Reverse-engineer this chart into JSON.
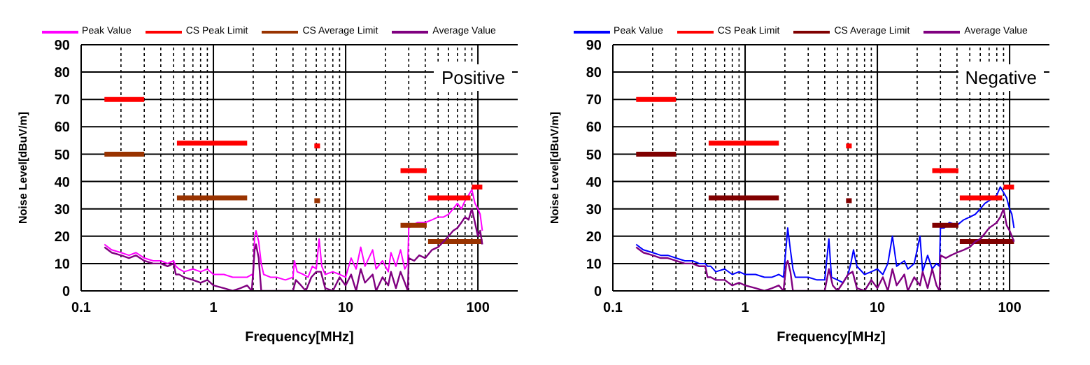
{
  "chart_data": [
    {
      "type": "line",
      "xlabel": "Frequency[MHz]",
      "ylabel": "Noise Level[dBuV/m]",
      "annotations": [
        "Positive"
      ],
      "log": "x",
      "grid": true,
      "legend": "top",
      "xlim": [
        0.1,
        200
      ],
      "ylim": [
        0,
        90
      ],
      "xticks": [
        {
          "value": 0.1,
          "label": "0.1"
        },
        {
          "value": 0.2,
          "label": null
        },
        {
          "value": 0.3,
          "label": null
        },
        {
          "value": 0.4,
          "label": null
        },
        {
          "value": 0.5,
          "label": null
        },
        {
          "value": 0.6,
          "label": null
        },
        {
          "value": 0.7,
          "label": null
        },
        {
          "value": 0.8,
          "label": null
        },
        {
          "value": 0.9,
          "label": null
        },
        1,
        {
          "value": 2,
          "label": null
        },
        {
          "value": 3,
          "label": null
        },
        {
          "value": 4,
          "label": null
        },
        {
          "value": 5,
          "label": null
        },
        {
          "value": 6,
          "label": null
        },
        {
          "value": 7,
          "label": null
        },
        {
          "value": 8,
          "label": null
        },
        {
          "value": 9,
          "label": null
        },
        10,
        {
          "value": 20,
          "label": null
        },
        {
          "value": 30,
          "label": null
        },
        {
          "value": 40,
          "label": null
        },
        {
          "value": 50,
          "label": null
        },
        {
          "value": 60,
          "label": null
        },
        {
          "value": 70,
          "label": null
        },
        {
          "value": 80,
          "label": null
        },
        {
          "value": 90,
          "label": null
        },
        100
      ],
      "yticks": [
        0,
        10,
        20,
        30,
        40,
        50,
        60,
        70,
        80,
        90
      ],
      "series": [
        {
          "name": "Peak Value",
          "color": "#ff00ff",
          "x": [
            0.15,
            0.17,
            0.2,
            0.23,
            0.26,
            0.3,
            0.35,
            0.4,
            0.45,
            0.5,
            0.52,
            0.55,
            0.6,
            0.7,
            0.8,
            0.9,
            1.0,
            1.2,
            1.4,
            1.6,
            1.8,
            1.95,
            2.0,
            2.05,
            2.1,
            2.2,
            2.3,
            2.4,
            2.7,
            3.0,
            3.5,
            4.0,
            4.1,
            4.3,
            4.8,
            5.2,
            5.6,
            6.0,
            6.3,
            6.6,
            7.0,
            8.0,
            9.0,
            10,
            11,
            12,
            13,
            14,
            16,
            17,
            19,
            21,
            22,
            24,
            26,
            28,
            29.5,
            30,
            32,
            35,
            40,
            45,
            50,
            55,
            60,
            65,
            70,
            75,
            80,
            85,
            90,
            95,
            100,
            104,
            108
          ],
          "values": [
            17,
            15,
            14,
            13,
            14,
            12,
            11,
            11,
            10,
            11,
            9,
            8,
            7,
            8,
            7,
            8,
            6,
            6,
            5,
            5,
            5,
            6,
            5,
            20,
            22,
            18,
            10,
            6,
            5,
            5,
            4,
            5,
            11,
            7,
            6,
            5,
            9,
            8,
            19,
            9,
            6,
            7,
            6,
            5,
            12,
            8,
            16,
            9,
            15,
            8,
            11,
            7,
            14,
            9,
            15,
            8,
            10,
            23,
            24,
            25,
            25,
            26,
            27,
            27,
            28,
            30,
            32,
            30,
            33,
            35,
            37,
            32,
            30,
            28,
            22
          ]
        },
        {
          "name": "CS Peak Limit",
          "color": "#ff0000",
          "x": [
            0.15,
            0.3,
            0.4,
            0.53,
            1.8,
            3,
            5.8,
            6.4,
            10,
            26,
            41,
            41.5,
            42,
            88,
            89,
            90,
            108
          ],
          "values": [
            70,
            70,
            null,
            54,
            54,
            null,
            53,
            53,
            null,
            44,
            44,
            null,
            34,
            34,
            null,
            38,
            38
          ]
        },
        {
          "name": "CS Average Limit",
          "color": "#993300",
          "x": [
            0.15,
            0.3,
            0.4,
            0.53,
            1.8,
            3,
            5.8,
            6.4,
            10,
            26,
            41,
            41.5,
            42,
            108
          ],
          "values": [
            50,
            50,
            null,
            34,
            34,
            null,
            33,
            33,
            null,
            24,
            24,
            null,
            18,
            18
          ]
        },
        {
          "name": "Average Value",
          "color": "#800080",
          "x": [
            0.15,
            0.17,
            0.2,
            0.23,
            0.26,
            0.3,
            0.35,
            0.4,
            0.45,
            0.5,
            0.52,
            0.55,
            0.6,
            0.7,
            0.8,
            0.9,
            1.0,
            1.2,
            1.4,
            1.6,
            1.8,
            1.95,
            2.05,
            2.1,
            2.2,
            2.3,
            4.0,
            4.2,
            4.6,
            5.0,
            5.5,
            6.0,
            6.5,
            7.0,
            8,
            9,
            10,
            11,
            12,
            13,
            14,
            16,
            17,
            19,
            21,
            22,
            24,
            26,
            28,
            29.5,
            30,
            33,
            36,
            40,
            45,
            50,
            55,
            60,
            65,
            70,
            75,
            80,
            85,
            90,
            95,
            100,
            104,
            108
          ],
          "values": [
            16,
            14,
            13,
            12,
            13,
            11,
            10,
            10,
            9,
            10,
            6,
            6,
            5,
            4,
            3,
            4,
            2,
            1,
            0,
            1,
            2,
            0,
            15,
            17,
            12,
            0,
            0,
            4,
            2,
            0,
            5,
            7,
            7,
            1,
            0,
            5,
            2,
            6,
            0,
            8,
            3,
            6,
            0,
            5,
            2,
            7,
            1,
            7,
            3,
            0,
            12,
            11,
            13,
            12,
            15,
            16,
            18,
            20,
            22,
            23,
            25,
            27,
            26,
            30,
            25,
            20,
            22,
            17
          ]
        }
      ]
    },
    {
      "type": "line",
      "xlabel": "Frequency[MHz]",
      "ylabel": "Noise Level[dBuV/m]",
      "annotations": [
        "Negative"
      ],
      "log": "x",
      "grid": true,
      "legend": "top",
      "xlim": [
        0.1,
        200
      ],
      "ylim": [
        0,
        90
      ],
      "xticks": [
        {
          "value": 0.1,
          "label": "0.1"
        },
        {
          "value": 0.2,
          "label": null
        },
        {
          "value": 0.3,
          "label": null
        },
        {
          "value": 0.4,
          "label": null
        },
        {
          "value": 0.5,
          "label": null
        },
        {
          "value": 0.6,
          "label": null
        },
        {
          "value": 0.7,
          "label": null
        },
        {
          "value": 0.8,
          "label": null
        },
        {
          "value": 0.9,
          "label": null
        },
        1,
        {
          "value": 2,
          "label": null
        },
        {
          "value": 3,
          "label": null
        },
        {
          "value": 4,
          "label": null
        },
        {
          "value": 5,
          "label": null
        },
        {
          "value": 6,
          "label": null
        },
        {
          "value": 7,
          "label": null
        },
        {
          "value": 8,
          "label": null
        },
        {
          "value": 9,
          "label": null
        },
        10,
        {
          "value": 20,
          "label": null
        },
        {
          "value": 30,
          "label": null
        },
        {
          "value": 40,
          "label": null
        },
        {
          "value": 50,
          "label": null
        },
        {
          "value": 60,
          "label": null
        },
        {
          "value": 70,
          "label": null
        },
        {
          "value": 80,
          "label": null
        },
        {
          "value": 90,
          "label": null
        },
        100
      ],
      "yticks": [
        0,
        10,
        20,
        30,
        40,
        50,
        60,
        70,
        80,
        90
      ],
      "series": [
        {
          "name": "Peak Value",
          "color": "#0000ff",
          "x": [
            0.15,
            0.17,
            0.2,
            0.23,
            0.26,
            0.3,
            0.35,
            0.4,
            0.45,
            0.5,
            0.52,
            0.55,
            0.6,
            0.7,
            0.8,
            0.9,
            1.0,
            1.2,
            1.4,
            1.6,
            1.8,
            1.95,
            2.05,
            2.1,
            2.2,
            2.3,
            2.4,
            2.7,
            3.0,
            3.5,
            4.0,
            4.3,
            4.5,
            5.0,
            5.5,
            6.0,
            6.3,
            6.6,
            7.0,
            8.0,
            9.0,
            10,
            11,
            12,
            13,
            14,
            16,
            17,
            19,
            21,
            22,
            24,
            26,
            28,
            29.5,
            30,
            32,
            35,
            40,
            45,
            50,
            55,
            60,
            65,
            70,
            75,
            80,
            85,
            90,
            95,
            100,
            104,
            108
          ],
          "values": [
            17,
            15,
            14,
            13,
            13,
            12,
            11,
            11,
            10,
            10,
            9,
            9,
            7,
            8,
            6,
            7,
            6,
            6,
            5,
            5,
            6,
            5,
            17,
            23,
            15,
            8,
            5,
            5,
            5,
            4,
            4,
            19,
            5,
            4,
            3,
            6,
            10,
            15,
            9,
            6,
            7,
            8,
            6,
            10,
            20,
            9,
            11,
            8,
            10,
            20,
            7,
            13,
            8,
            10,
            9,
            23,
            23,
            25,
            24,
            26,
            27,
            28,
            30,
            32,
            33,
            34,
            35,
            38,
            36,
            34,
            30,
            28,
            23
          ]
        },
        {
          "name": "CS Peak Limit",
          "color": "#ff0000",
          "x": [
            0.15,
            0.3,
            0.4,
            0.53,
            1.8,
            3,
            5.8,
            6.4,
            10,
            26,
            41,
            41.5,
            42,
            88,
            89,
            90,
            108
          ],
          "values": [
            70,
            70,
            null,
            54,
            54,
            null,
            53,
            53,
            null,
            44,
            44,
            null,
            34,
            34,
            null,
            38,
            38
          ]
        },
        {
          "name": "CS Average Limit",
          "color": "#800000",
          "x": [
            0.15,
            0.3,
            0.4,
            0.53,
            1.8,
            3,
            5.8,
            6.4,
            10,
            26,
            41,
            41.5,
            42,
            108
          ],
          "values": [
            50,
            50,
            null,
            34,
            34,
            null,
            33,
            33,
            null,
            24,
            24,
            null,
            18,
            18
          ]
        },
        {
          "name": "Average Value",
          "color": "#800080",
          "x": [
            0.15,
            0.17,
            0.2,
            0.23,
            0.26,
            0.3,
            0.35,
            0.4,
            0.45,
            0.5,
            0.52,
            0.55,
            0.6,
            0.7,
            0.8,
            0.9,
            1.0,
            1.2,
            1.4,
            1.6,
            1.8,
            1.95,
            2.05,
            2.1,
            2.2,
            2.3,
            4.0,
            4.3,
            4.6,
            5.0,
            5.5,
            6.0,
            6.5,
            7.0,
            8,
            9,
            10,
            11,
            12,
            13,
            14,
            16,
            17,
            19,
            21,
            22,
            24,
            26,
            28,
            29.5,
            30,
            33,
            36,
            40,
            45,
            50,
            55,
            60,
            65,
            70,
            75,
            80,
            85,
            90,
            95,
            100,
            104,
            108
          ],
          "values": [
            16,
            14,
            13,
            12,
            12,
            11,
            10,
            10,
            9,
            9,
            5,
            5,
            4,
            4,
            2,
            3,
            2,
            1,
            0,
            1,
            2,
            0,
            10,
            11,
            7,
            0,
            0,
            8,
            2,
            0,
            3,
            6,
            7,
            1,
            0,
            4,
            1,
            5,
            0,
            8,
            2,
            6,
            0,
            5,
            2,
            7,
            1,
            8,
            2,
            0,
            13,
            12,
            13,
            14,
            15,
            16,
            18,
            19,
            21,
            23,
            24,
            25,
            27,
            30,
            24,
            22,
            20,
            18
          ]
        }
      ]
    }
  ]
}
